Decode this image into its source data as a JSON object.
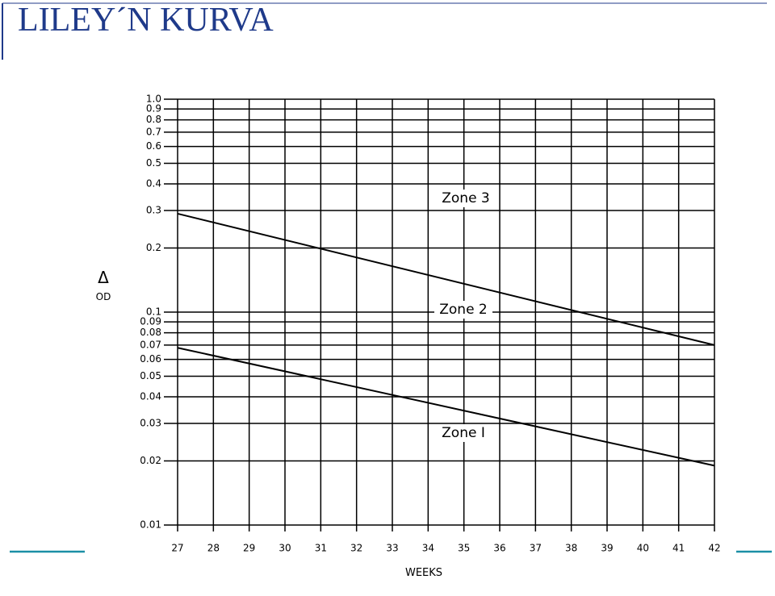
{
  "chart_data": {
    "type": "line",
    "title": "LILEY´N KURVA",
    "x_label": "WEEKS",
    "y_label": [
      "Δ",
      "OD"
    ],
    "x": [
      27,
      42
    ],
    "series": [
      {
        "name": "Zone 3 / Zone 2 boundary",
        "color": "#000000",
        "values": [
          0.29,
          0.07
        ]
      },
      {
        "name": "Zone 2 / Zone 1 boundary",
        "color": "#000000",
        "values": [
          0.068,
          0.019
        ]
      }
    ],
    "annotations": [
      "Zone 3",
      "Zone 2",
      "Zone I"
    ],
    "xlim": [
      27,
      42
    ],
    "xticks": [
      27,
      28,
      29,
      30,
      31,
      32,
      33,
      34,
      35,
      36,
      37,
      38,
      39,
      40,
      41,
      42
    ],
    "ylim": [
      0.01,
      1
    ],
    "log_y": true,
    "yticks": [
      0.01,
      0.02,
      0.03,
      0.04,
      0.05,
      0.06,
      0.07,
      0.08,
      0.09,
      0.1,
      0.2,
      0.3,
      0.4,
      0.5,
      0.6,
      0.7,
      0.8,
      0.9,
      {
        "value": 1,
        "label": "1.0"
      }
    ],
    "grid": true
  }
}
